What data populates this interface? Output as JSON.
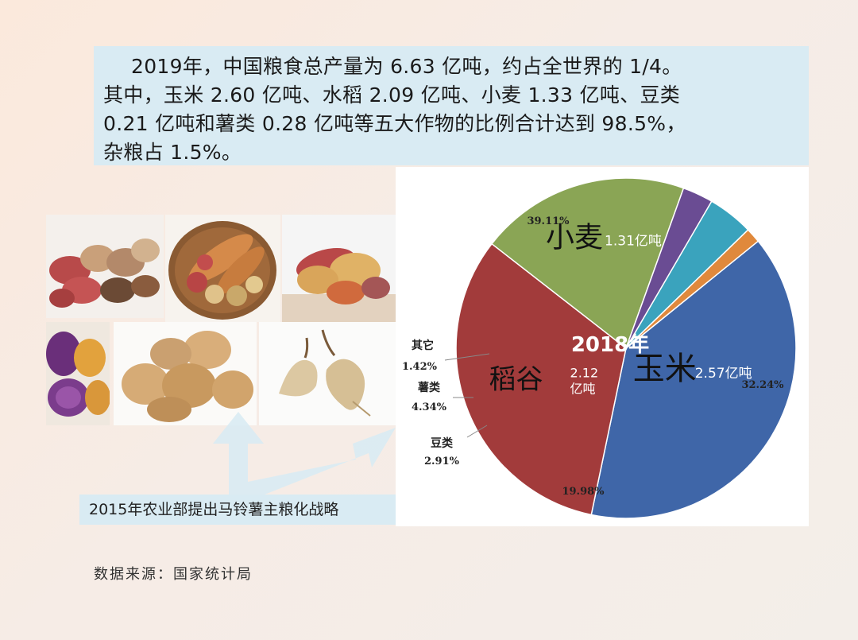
{
  "summary": {
    "lines": [
      "2019年，中国粮食总产量为 6.63 亿吨，约占全世界的 1/4。",
      "其中，玉米 2.60 亿吨、水稻 2.09 亿吨、小麦 1.33 亿吨、豆类",
      "0.21 亿吨和薯类 0.28 亿吨等五大作物的比例合计达到 98.5%，",
      "杂粮占 1.5%。"
    ]
  },
  "caption": "2015年农业部提出马铃薯主粮化战略",
  "source": "数据来源：国家统计局",
  "chart_data": {
    "type": "pie",
    "title": "2018年",
    "slices": [
      {
        "name": "玉米",
        "percent": 39.11,
        "amount": "2.57亿吨",
        "color": "#3f66a8"
      },
      {
        "name": "稻谷",
        "percent": 32.24,
        "amount": "2.12 亿吨",
        "color": "#a23b3b"
      },
      {
        "name": "小麦",
        "percent": 19.98,
        "amount": "1.31亿吨",
        "color": "#8aa555"
      },
      {
        "name": "豆类",
        "percent": 2.91,
        "amount": "",
        "color": "#6a4c93"
      },
      {
        "name": "薯类",
        "percent": 4.34,
        "amount": "",
        "color": "#3aa3bd"
      },
      {
        "name": "其它",
        "percent": 1.42,
        "amount": "",
        "color": "#e0893c"
      }
    ],
    "percent_labels": [
      "39.11%",
      "32.24%",
      "19.98%",
      "2.91%",
      "4.34%",
      "1.42%"
    ]
  }
}
